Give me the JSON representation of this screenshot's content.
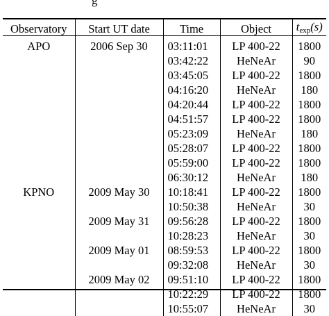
{
  "caption_fragment": "g",
  "table": {
    "headers": {
      "observatory": "Observatory",
      "start_ut_date": "Start UT date",
      "time": "Time",
      "object": "Object",
      "texp_symbol": "t",
      "texp_sub": "exp",
      "texp_unit": "(s)"
    },
    "rows": [
      {
        "observatory": "APO",
        "date": "2006 Sep 30",
        "time": "03:11:01",
        "object": "LP 400-22",
        "texp": "1800"
      },
      {
        "observatory": "",
        "date": "",
        "time": "03:42:22",
        "object": "HeNeAr",
        "texp": "90"
      },
      {
        "observatory": "",
        "date": "",
        "time": "03:45:05",
        "object": "LP 400-22",
        "texp": "1800"
      },
      {
        "observatory": "",
        "date": "",
        "time": "04:16:20",
        "object": "HeNeAr",
        "texp": "180"
      },
      {
        "observatory": "",
        "date": "",
        "time": "04:20:44",
        "object": "LP 400-22",
        "texp": "1800"
      },
      {
        "observatory": "",
        "date": "",
        "time": "04:51:57",
        "object": "LP 400-22",
        "texp": "1800"
      },
      {
        "observatory": "",
        "date": "",
        "time": "05:23:09",
        "object": "HeNeAr",
        "texp": "180"
      },
      {
        "observatory": "",
        "date": "",
        "time": "05:28:07",
        "object": "LP 400-22",
        "texp": "1800"
      },
      {
        "observatory": "",
        "date": "",
        "time": "05:59:00",
        "object": "LP 400-22",
        "texp": "1800"
      },
      {
        "observatory": "",
        "date": "",
        "time": "06:30:12",
        "object": "HeNeAr",
        "texp": "180"
      },
      {
        "observatory": "KPNO",
        "date": "2009 May 30",
        "time": "10:18:41",
        "object": "LP 400-22",
        "texp": "1800"
      },
      {
        "observatory": "",
        "date": "",
        "time": "10:50:38",
        "object": "HeNeAr",
        "texp": "30"
      },
      {
        "observatory": "",
        "date": "2009 May 31",
        "time": "09:56:28",
        "object": "LP 400-22",
        "texp": "1800"
      },
      {
        "observatory": "",
        "date": "",
        "time": "10:28:23",
        "object": "HeNeAr",
        "texp": "30"
      },
      {
        "observatory": "",
        "date": "2009 May 01",
        "time": "08:59:53",
        "object": "LP 400-22",
        "texp": "1800"
      },
      {
        "observatory": "",
        "date": "",
        "time": "09:32:08",
        "object": "HeNeAr",
        "texp": "30"
      },
      {
        "observatory": "",
        "date": "2009 May 02",
        "time": "09:51:10",
        "object": "LP 400-22",
        "texp": "1800"
      },
      {
        "observatory": "",
        "date": "",
        "time": "10:22:29",
        "object": "LP 400-22",
        "texp": "1800"
      },
      {
        "observatory": "",
        "date": "",
        "time": "10:55:07",
        "object": "HeNeAr",
        "texp": "30"
      }
    ]
  }
}
